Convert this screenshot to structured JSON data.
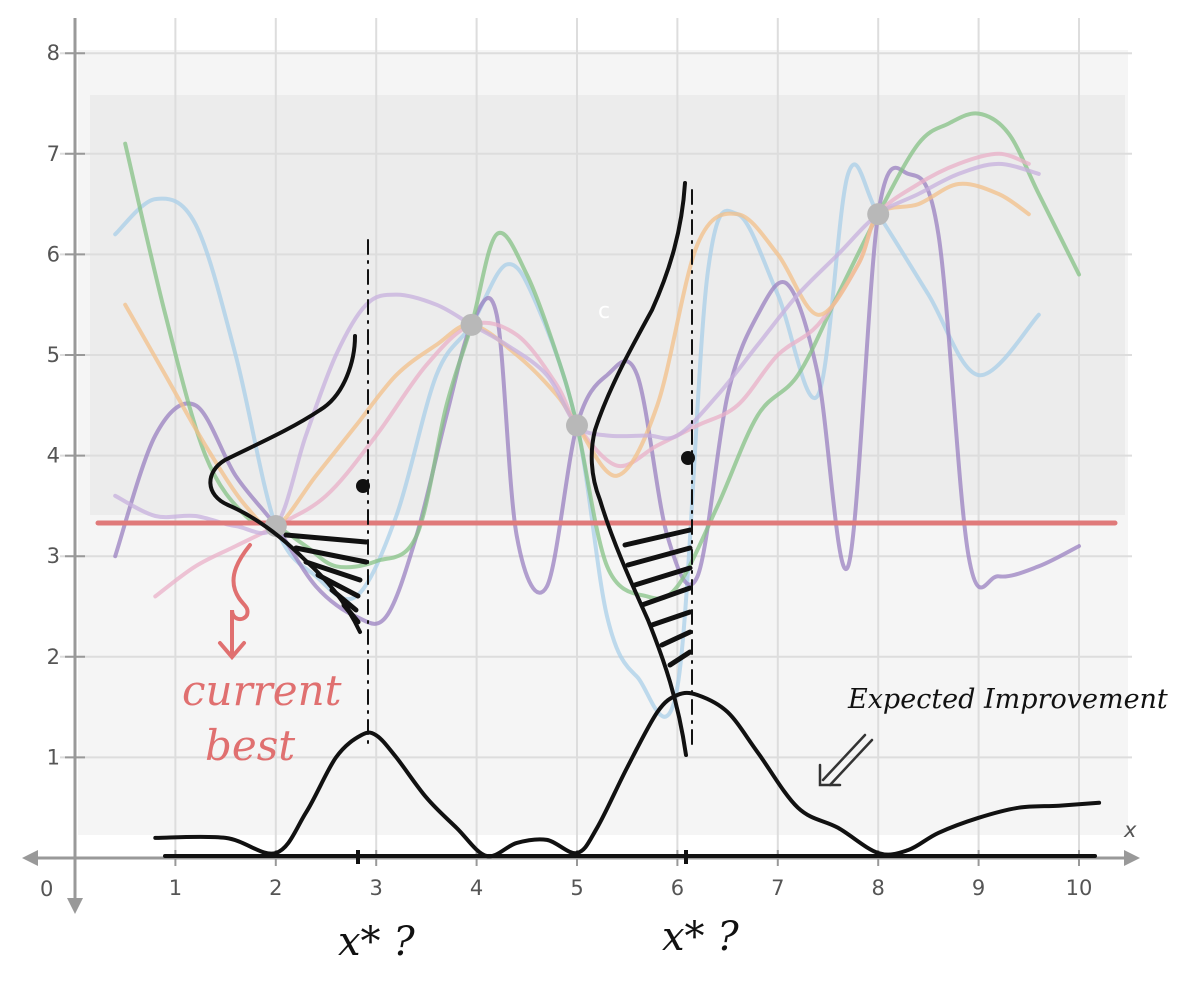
{
  "axes": {
    "x_ticks": [
      "1",
      "2",
      "3",
      "4",
      "5",
      "6",
      "7",
      "8",
      "9",
      "10"
    ],
    "y_ticks": [
      "1",
      "2",
      "3",
      "4",
      "5",
      "6",
      "7",
      "8"
    ],
    "origin": "0",
    "x_axis_label": "x",
    "grid": true
  },
  "annotations": {
    "current_best": [
      "current",
      "best"
    ],
    "expected_improvement": "Expected Improvement",
    "candidate_1": "x* ?",
    "candidate_2": "x* ?",
    "faint_mark": "c"
  },
  "colors": {
    "current_best_line": "#e07a7a",
    "ink": "#111111",
    "observation": "#b8b8b8",
    "sample_blue": "#a9cfe8",
    "sample_purple": "#9a80c0",
    "sample_green": "#86c286",
    "sample_pink": "#eab0c8",
    "sample_orange": "#f3c08a",
    "sample_lavender": "#c7b0dd"
  },
  "chart_data": {
    "type": "line",
    "xlim": [
      0,
      10.5
    ],
    "ylim": [
      0,
      8.2
    ],
    "observations": [
      {
        "x": 2.0,
        "y": 3.3
      },
      {
        "x": 3.95,
        "y": 5.3
      },
      {
        "x": 5.0,
        "y": 4.3
      },
      {
        "x": 8.0,
        "y": 6.4
      }
    ],
    "current_best": 3.33,
    "gaussian_candidates": [
      {
        "x": 2.9,
        "mean": 3.7
      },
      {
        "x": 6.1,
        "mean": 4.0
      }
    ],
    "expected_improvement": {
      "x": [
        0.8,
        1.5,
        2.0,
        2.3,
        2.6,
        2.85,
        3.0,
        3.2,
        3.5,
        3.8,
        4.1,
        4.4,
        4.7,
        5.0,
        5.2,
        5.5,
        5.8,
        6.0,
        6.2,
        6.5,
        6.8,
        7.2,
        7.6,
        8.0,
        8.3,
        8.6,
        9.0,
        9.4,
        9.8,
        10.2
      ],
      "y": [
        0.2,
        0.2,
        0.05,
        0.45,
        1.0,
        1.22,
        1.22,
        1.0,
        0.6,
        0.3,
        0.02,
        0.15,
        0.18,
        0.05,
        0.3,
        0.9,
        1.45,
        1.62,
        1.62,
        1.45,
        1.05,
        0.5,
        0.3,
        0.05,
        0.08,
        0.25,
        0.4,
        0.5,
        0.52,
        0.55
      ]
    },
    "posterior_samples": [
      {
        "color": "sample_blue",
        "x": [
          0.4,
          0.8,
          1.2,
          1.6,
          2.0,
          2.4,
          2.8,
          3.2,
          3.6,
          3.95,
          4.3,
          4.6,
          5.0,
          5.3,
          5.6,
          6.0,
          6.3,
          6.6,
          7.0,
          7.4,
          7.7,
          8.0,
          8.5,
          9.0,
          9.6
        ],
        "y": [
          6.2,
          6.55,
          6.3,
          5.0,
          3.3,
          2.8,
          2.6,
          3.4,
          4.8,
          5.3,
          5.9,
          5.5,
          4.3,
          2.4,
          1.8,
          1.7,
          5.8,
          6.4,
          5.6,
          4.6,
          6.8,
          6.4,
          5.6,
          4.8,
          5.4
        ]
      },
      {
        "color": "sample_purple",
        "x": [
          0.4,
          0.8,
          1.2,
          1.6,
          2.0,
          2.4,
          2.8,
          3.1,
          3.4,
          3.7,
          3.95,
          4.2,
          4.4,
          4.7,
          5.0,
          5.3,
          5.6,
          5.9,
          6.2,
          6.5,
          6.8,
          7.1,
          7.4,
          7.7,
          8.0,
          8.3,
          8.6,
          8.9,
          9.2,
          9.6,
          10.0
        ],
        "y": [
          3.0,
          4.2,
          4.5,
          3.8,
          3.3,
          2.7,
          2.4,
          2.4,
          3.2,
          4.4,
          5.3,
          5.4,
          3.2,
          2.7,
          4.3,
          4.8,
          4.8,
          3.2,
          2.8,
          4.6,
          5.4,
          5.7,
          4.8,
          2.9,
          6.4,
          6.8,
          6.2,
          3.0,
          2.8,
          2.9,
          3.1
        ]
      },
      {
        "color": "sample_green",
        "x": [
          0.5,
          0.9,
          1.3,
          1.7,
          2.0,
          2.3,
          2.6,
          3.0,
          3.4,
          3.7,
          3.95,
          4.2,
          4.5,
          4.8,
          5.0,
          5.3,
          5.7,
          6.0,
          6.4,
          6.8,
          7.2,
          7.6,
          8.0,
          8.4,
          8.7,
          9.0,
          9.3,
          9.6,
          10.0
        ],
        "y": [
          7.1,
          5.4,
          4.0,
          3.4,
          3.3,
          3.1,
          2.9,
          2.95,
          3.2,
          4.5,
          5.3,
          6.2,
          5.8,
          5.0,
          4.3,
          2.9,
          2.6,
          2.7,
          3.5,
          4.4,
          4.8,
          5.6,
          6.4,
          7.1,
          7.3,
          7.4,
          7.2,
          6.6,
          5.8
        ]
      },
      {
        "color": "sample_pink",
        "x": [
          0.8,
          1.2,
          1.6,
          2.0,
          2.5,
          3.0,
          3.5,
          3.95,
          4.4,
          4.8,
          5.0,
          5.4,
          5.8,
          6.2,
          6.6,
          7.0,
          7.4,
          7.8,
          8.0,
          8.4,
          8.8,
          9.2,
          9.5
        ],
        "y": [
          2.6,
          2.9,
          3.1,
          3.3,
          3.6,
          4.2,
          4.9,
          5.3,
          5.2,
          4.7,
          4.3,
          3.9,
          4.1,
          4.3,
          4.5,
          5.0,
          5.3,
          5.9,
          6.4,
          6.7,
          6.9,
          7.0,
          6.9
        ]
      },
      {
        "color": "sample_orange",
        "x": [
          0.5,
          0.9,
          1.3,
          1.7,
          2.0,
          2.4,
          2.8,
          3.2,
          3.6,
          3.95,
          4.4,
          4.8,
          5.0,
          5.4,
          5.8,
          6.2,
          6.6,
          7.0,
          7.4,
          7.8,
          8.0,
          8.4,
          8.8,
          9.2,
          9.5
        ],
        "y": [
          5.5,
          4.8,
          4.1,
          3.5,
          3.3,
          3.8,
          4.3,
          4.8,
          5.1,
          5.3,
          5.0,
          4.6,
          4.3,
          3.8,
          4.5,
          6.1,
          6.4,
          6.0,
          5.4,
          5.9,
          6.4,
          6.5,
          6.7,
          6.6,
          6.4
        ]
      },
      {
        "color": "sample_lavender",
        "x": [
          0.4,
          0.8,
          1.2,
          1.6,
          2.0,
          2.3,
          2.6,
          2.9,
          3.2,
          3.6,
          3.95,
          4.3,
          4.7,
          5.0,
          5.3,
          5.7,
          6.0,
          6.4,
          6.8,
          7.2,
          7.6,
          8.0,
          8.4,
          8.8,
          9.2,
          9.6
        ],
        "y": [
          3.6,
          3.4,
          3.4,
          3.3,
          3.3,
          4.2,
          5.0,
          5.5,
          5.6,
          5.5,
          5.3,
          5.1,
          4.8,
          4.3,
          4.2,
          4.2,
          4.2,
          4.6,
          5.1,
          5.6,
          6.0,
          6.4,
          6.6,
          6.8,
          6.9,
          6.8
        ]
      }
    ]
  }
}
